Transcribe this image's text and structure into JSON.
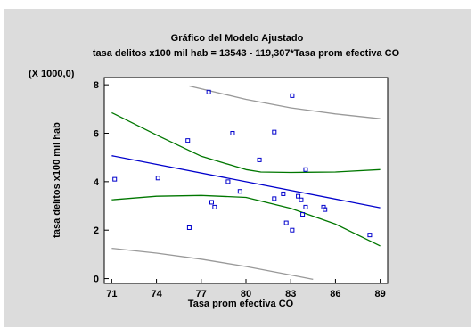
{
  "chart_data": {
    "type": "scatter",
    "title": "Gráfico del Modelo Ajustado",
    "subtitle": "tasa delitos x100 mil hab = 13543 - 119,307*Tasa prom efectiva CO",
    "xlabel": "Tasa prom efectiva CO",
    "ylabel": "tasa delitos x100 mil hab",
    "y_multiplier_label": "(X 1000,0)",
    "xlim": [
      70.5,
      89.5
    ],
    "ylim": [
      -200,
      8300
    ],
    "x_ticks": [
      71,
      74,
      77,
      80,
      83,
      86,
      89
    ],
    "x_tick_labels": [
      "71",
      "74",
      "77",
      "80",
      "83",
      "86",
      "89"
    ],
    "y_ticks": [
      0,
      2000,
      4000,
      6000,
      8000
    ],
    "y_tick_labels": [
      "0",
      "2",
      "4",
      "6",
      "8"
    ],
    "grid": false,
    "colors": {
      "points": "#0000cc",
      "fit_line": "#0000cc",
      "confidence_limits": "#007700",
      "prediction_limits": "#999999",
      "background": "#dcdcdc",
      "plot_area": "#ffffff"
    },
    "series": [
      {
        "kind": "points",
        "x": [
          71.2,
          74.1,
          76.1,
          76.2,
          77.5,
          77.7,
          77.9,
          78.8,
          79.1,
          79.6,
          80.9,
          81.9,
          81.9,
          82.5,
          82.7,
          83.1,
          83.1,
          83.5,
          83.7,
          83.8,
          84.0,
          84.0,
          85.2,
          85.3,
          88.3
        ],
        "y": [
          4100,
          4150,
          5700,
          2100,
          7700,
          3150,
          2950,
          4000,
          6000,
          3600,
          4900,
          3300,
          6050,
          3500,
          2300,
          2000,
          7550,
          3400,
          3250,
          2650,
          4500,
          2950,
          2950,
          2850,
          1800
        ]
      },
      {
        "kind": "line",
        "x": [
          71,
          89
        ],
        "y": [
          5072,
          2924
        ]
      },
      {
        "kind": "line",
        "x": [
          71,
          74,
          77,
          80,
          81,
          83,
          84,
          86,
          89
        ],
        "y": [
          6850,
          5930,
          5050,
          4500,
          4400,
          4380,
          4390,
          4400,
          4500
        ]
      },
      {
        "kind": "line",
        "x": [
          71,
          74,
          77,
          80,
          83,
          86,
          89
        ],
        "y": [
          3250,
          3400,
          3430,
          3350,
          2900,
          2250,
          1350
        ]
      },
      {
        "kind": "line",
        "x": [
          76.2,
          80,
          83,
          86,
          89
        ],
        "y": [
          7950,
          7400,
          7050,
          6800,
          6600
        ]
      },
      {
        "kind": "line",
        "x": [
          71,
          74,
          77,
          80,
          83,
          84.5
        ],
        "y": [
          1250,
          1050,
          800,
          500,
          150,
          -30
        ]
      }
    ]
  }
}
